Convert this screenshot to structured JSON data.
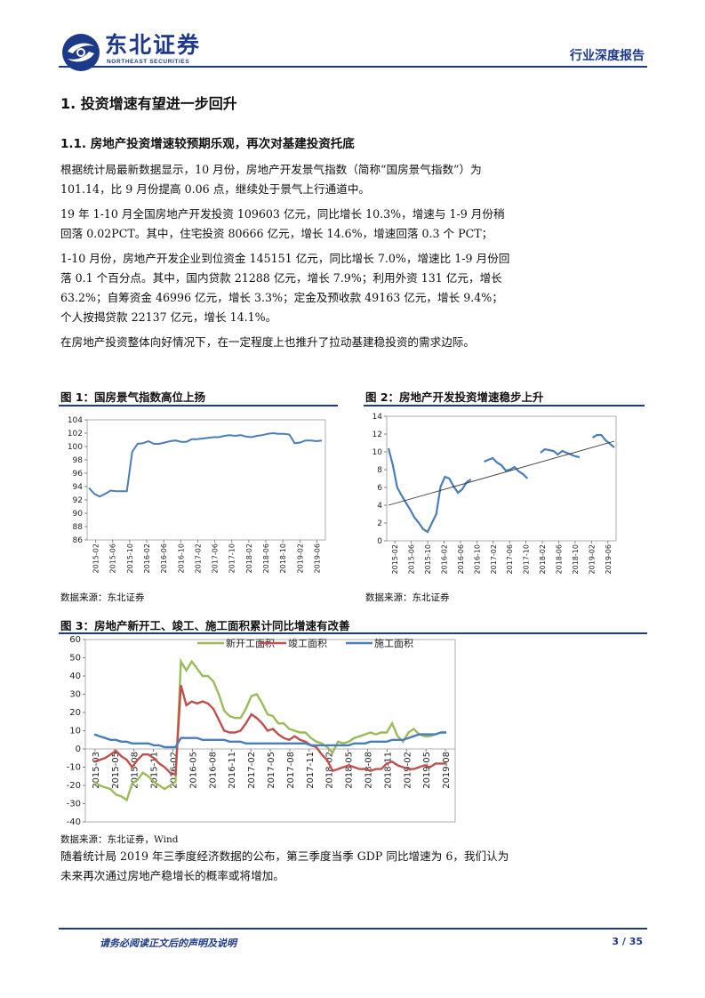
{
  "header": {
    "logo_cn": "东北证券",
    "logo_en": "NORTHEAST SECURITIES",
    "report_type": "行业深度报告"
  },
  "section": {
    "h1": "1.  投资增速有望进一步回升",
    "h2": "1.1.   房地产投资增速较预期乐观，再次对基建投资托底"
  },
  "paragraphs": [
    "根据统计局最新数据显示，10 月份，房地产开发景气指数（简称“国房景气指数”）为 101.14，比 9 月份提高 0.06 点，继续处于景气上行通道中。",
    "19 年 1-10 月全国房地产开发投资 109603 亿元，同比增长 10.3%，增速与 1-9 月份稍回落 0.02PCT。其中，住宅投资 80666 亿元，增长 14.6%，增速回落 0.3 个 PCT；",
    "1-10 月份，房地产开发企业到位资金 145151 亿元，同比增长 7.0%，增速比 1-9 月份回落 0.1 个百分点。其中，国内贷款 21288 亿元，增长 7.9%；利用外资 131 亿元，增长 63.2%；自筹资金 46996 亿元，增长 3.3%；定金及预收款 49163 亿元，增长 9.4%；个人按揭贷款 22137 亿元，增长 14.1%。",
    "在房地产投资整体向好情况下，在一定程度上也推升了拉动基建稳投资的需求边际。"
  ],
  "figures": {
    "fig1_title": "图 1：国房景气指数高位上扬",
    "fig1_source": "数据来源：东北证券",
    "fig2_title": "图 2：房地产开发投资增速稳步上升",
    "fig2_source": "数据来源：东北证券",
    "fig3_title": "图 3：房地产新开工、竣工、施工面积累计同比增速有改善",
    "fig3_source": "数据来源：东北证券，Wind"
  },
  "closing_paragraph": "随着统计局 2019 年三季度经济数据的公布，第三季度当季 GDP 同比增速为 6，我们认为未来再次通过房地产稳增长的概率或将增加。",
  "footer": {
    "note": "请务必阅读正文后的声明及说明",
    "page": "3 / 35"
  },
  "colors": {
    "brand": "#1d3a8a",
    "line_blue": "#4a7ebb",
    "line_green": "#9bbb59",
    "line_red": "#c0504d"
  },
  "chart_data": [
    {
      "type": "line",
      "ylim": [
        86,
        104
      ],
      "yticks": [
        86,
        88,
        90,
        92,
        94,
        96,
        98,
        100,
        102,
        104
      ],
      "xticks": [
        "2015-02",
        "2015-06",
        "2015-10",
        "2016-02",
        "2016-06",
        "2016-10",
        "2017-02",
        "2017-06",
        "2017-10",
        "2018-02",
        "2018-06",
        "2018-10",
        "2019-02",
        "2019-06"
      ],
      "series": [
        {
          "values": [
            93.8,
            92.9,
            92.5,
            92.9,
            93.4,
            93.3,
            93.3,
            93.3,
            99.2,
            100.4,
            100.5,
            100.8,
            100.4,
            100.4,
            100.6,
            100.8,
            100.9,
            100.7,
            100.7,
            101.1,
            101.1,
            101.2,
            101.3,
            101.4,
            101.4,
            101.6,
            101.7,
            101.6,
            101.7,
            101.5,
            101.4,
            101.6,
            101.7,
            101.9,
            102.0,
            101.9,
            101.9,
            101.8,
            100.5,
            100.6,
            100.9,
            100.9,
            100.8,
            100.9
          ]
        }
      ]
    },
    {
      "type": "line",
      "ylim": [
        0,
        14
      ],
      "yticks": [
        0,
        2,
        4,
        6,
        8,
        10,
        12,
        14
      ],
      "xticks": [
        "2015-02",
        "2015-06",
        "2015-10",
        "2016-02",
        "2016-06",
        "2016-10",
        "2017-02",
        "2017-06",
        "2017-10",
        "2018-02",
        "2018-06",
        "2018-10",
        "2019-02",
        "2019-06"
      ],
      "series": [
        {
          "segments": [
            [
              10.4,
              8.5,
              6.0,
              5.1,
              4.3,
              3.5,
              2.6,
              2.0,
              1.3,
              1.0,
              2.0,
              3.0,
              6.1,
              7.2,
              7.0,
              6.1,
              5.4,
              5.8,
              6.6,
              6.9
            ],
            [
              8.9,
              9.1,
              9.3,
              8.8,
              8.5,
              7.9,
              8.0,
              8.3,
              7.8,
              7.5,
              7.0
            ],
            [
              9.9,
              10.3,
              10.2,
              10.1,
              9.7,
              10.1,
              9.9,
              9.7,
              9.5,
              9.4
            ],
            [
              11.6,
              11.9,
              11.9,
              11.3,
              10.9,
              10.5
            ]
          ],
          "trend_start": 4.0,
          "trend_end": 11.2
        }
      ]
    },
    {
      "type": "line",
      "ylim": [
        -40,
        60
      ],
      "yticks": [
        -40,
        -30,
        -20,
        -10,
        0,
        10,
        20,
        30,
        40,
        50,
        60
      ],
      "xticks": [
        "2015-03",
        "2015-05",
        "2015-08",
        "2015-11",
        "2016-02",
        "2016-05",
        "2016-08",
        "2016-11",
        "2017-02",
        "2017-05",
        "2017-08",
        "2017-11",
        "2018-02",
        "2018-05",
        "2018-08",
        "2018-11",
        "2019-02",
        "2019-05",
        "2019-08"
      ],
      "series": [
        {
          "name": "新开工面积",
          "values": [
            -18,
            -20,
            -21,
            -22,
            -25,
            -26,
            -28,
            -19,
            -17,
            -13,
            -15,
            -18,
            -20,
            -22,
            -20,
            -18,
            48,
            43,
            48,
            44,
            40,
            40,
            37,
            30,
            21,
            18,
            17,
            17,
            22,
            29,
            30,
            25,
            19,
            18,
            14,
            14,
            11,
            10,
            9,
            9,
            6,
            4,
            3,
            1,
            -2,
            4,
            3,
            4,
            6,
            7,
            8,
            9,
            8,
            9,
            9,
            14,
            7,
            4,
            9,
            11,
            8,
            7,
            7,
            8,
            9,
            9
          ]
        },
        {
          "name": "竣工面积",
          "values": [
            -7,
            -6,
            -5,
            -3,
            -1,
            -4,
            -6,
            -10,
            -6,
            -3,
            -3,
            -5,
            -8,
            -10,
            -13,
            -14,
            35,
            24,
            26,
            25,
            26,
            25,
            22,
            16,
            10,
            9,
            9,
            10,
            14,
            19,
            17,
            14,
            10,
            11,
            8,
            6,
            5,
            7,
            5,
            4,
            2,
            1,
            -3,
            -6,
            -12,
            -11,
            -10,
            -9,
            -10,
            -11,
            -11,
            -12,
            -11,
            -11,
            -8,
            -7,
            -9,
            -10,
            -11,
            -11,
            -10,
            -9,
            -10,
            -8,
            -8,
            -8
          ]
        },
        {
          "name": "施工面积",
          "values": [
            8,
            7,
            6,
            5,
            5,
            4,
            4,
            3,
            3,
            3,
            3,
            2,
            2,
            1,
            1,
            1,
            6,
            6,
            6,
            6,
            5,
            5,
            5,
            5,
            5,
            4,
            4,
            4,
            3,
            3,
            3,
            3,
            3,
            3,
            3,
            3,
            3,
            3,
            3,
            3,
            2,
            2,
            2,
            2,
            2,
            2,
            2,
            2,
            3,
            3,
            3,
            4,
            4,
            4,
            4,
            5,
            5,
            5,
            6,
            7,
            8,
            8,
            8,
            8,
            9,
            9
          ]
        }
      ]
    }
  ]
}
